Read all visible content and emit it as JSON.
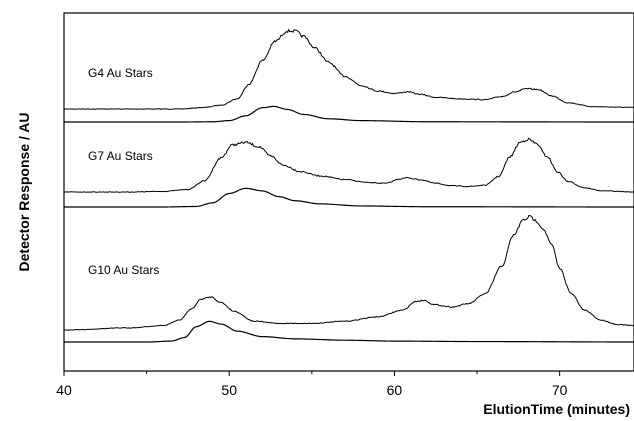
{
  "chart_data": {
    "type": "line",
    "title": "",
    "xlabel": "ElutionTime (minutes)",
    "ylabel": "Detector Response / AU",
    "xlim": [
      40,
      74.5
    ],
    "xticks": [
      "40",
      "50",
      "60",
      "70"
    ],
    "xtick_values": [
      40,
      50,
      60,
      70
    ],
    "yticks": [],
    "grid": false,
    "legend": "none",
    "line_color": "#000000",
    "panels": [
      {
        "label": "G4 Au Stars",
        "upper": {
          "x": [
            40,
            44,
            47,
            48.5,
            49.5,
            50.5,
            51.2,
            52,
            52.8,
            53.5,
            54,
            54.5,
            55.2,
            56,
            57,
            58,
            59,
            60,
            60.8,
            61.5,
            62.5,
            64,
            65.5,
            66.5,
            67.3,
            68,
            68.7,
            69.5,
            70.5,
            72,
            74.5
          ],
          "y": [
            0.0,
            0.0,
            0.0,
            0.02,
            0.05,
            0.13,
            0.32,
            0.62,
            0.87,
            1.0,
            1.0,
            0.93,
            0.78,
            0.6,
            0.42,
            0.3,
            0.23,
            0.2,
            0.22,
            0.19,
            0.15,
            0.13,
            0.12,
            0.16,
            0.22,
            0.26,
            0.25,
            0.17,
            0.08,
            0.03,
            0.02
          ]
        },
        "lower": {
          "x": [
            40,
            47,
            49,
            50,
            51,
            52,
            52.7,
            53.5,
            54.5,
            56,
            58,
            62,
            74.5
          ],
          "y": [
            0.0,
            0.0,
            0.01,
            0.06,
            0.27,
            0.62,
            0.68,
            0.55,
            0.33,
            0.14,
            0.06,
            0.01,
            0.0
          ]
        }
      },
      {
        "label": "G7 Au Stars",
        "upper": {
          "x": [
            40,
            44,
            46,
            47.5,
            48.5,
            49.5,
            50.2,
            51,
            51.8,
            52.5,
            53.3,
            54.3,
            55.5,
            57,
            58.5,
            59.5,
            60.3,
            60.8,
            61.5,
            62.5,
            63.5,
            64.5,
            65.5,
            66.3,
            67,
            67.6,
            68.1,
            68.6,
            69.2,
            69.9,
            70.5,
            71.5,
            72.5,
            74.5
          ],
          "y": [
            0.0,
            0.0,
            0.01,
            0.04,
            0.18,
            0.55,
            0.76,
            0.8,
            0.73,
            0.58,
            0.43,
            0.33,
            0.26,
            0.2,
            0.15,
            0.14,
            0.21,
            0.23,
            0.2,
            0.14,
            0.1,
            0.09,
            0.11,
            0.25,
            0.57,
            0.8,
            0.85,
            0.78,
            0.58,
            0.32,
            0.17,
            0.07,
            0.02,
            0.0
          ]
        },
        "lower": {
          "x": [
            40,
            46,
            48,
            49,
            50,
            51,
            52,
            53,
            54,
            55.5,
            58,
            62,
            74.5
          ],
          "y": [
            0.0,
            0.0,
            0.02,
            0.16,
            0.52,
            0.72,
            0.62,
            0.4,
            0.24,
            0.12,
            0.04,
            0.01,
            0.0
          ]
        }
      },
      {
        "label": "G10 Au Stars",
        "upper": {
          "x": [
            40,
            44,
            46,
            47,
            47.7,
            48.3,
            48.9,
            49.5,
            50.3,
            51.5,
            53,
            55,
            57,
            59,
            60.5,
            61.3,
            61.8,
            62.4,
            63.5,
            64.5,
            65.5,
            66.5,
            67.2,
            67.8,
            68.2,
            68.6,
            69,
            69.5,
            70,
            70.7,
            71.5,
            72.5,
            73.5,
            74.5
          ],
          "y": [
            0.0,
            0.02,
            0.04,
            0.09,
            0.19,
            0.28,
            0.3,
            0.25,
            0.17,
            0.08,
            0.06,
            0.06,
            0.08,
            0.12,
            0.18,
            0.26,
            0.27,
            0.23,
            0.21,
            0.24,
            0.33,
            0.58,
            0.86,
            1.0,
            1.03,
            0.99,
            0.92,
            0.78,
            0.56,
            0.33,
            0.18,
            0.09,
            0.05,
            0.04
          ]
        },
        "lower": {
          "x": [
            40,
            45,
            46.5,
            47.3,
            48,
            48.8,
            49.5,
            50.5,
            52,
            54,
            57,
            60,
            65,
            74.5
          ],
          "y": [
            0.0,
            0.0,
            0.02,
            0.1,
            0.34,
            0.46,
            0.4,
            0.24,
            0.12,
            0.07,
            0.04,
            0.02,
            0.01,
            0.0
          ]
        }
      }
    ]
  }
}
